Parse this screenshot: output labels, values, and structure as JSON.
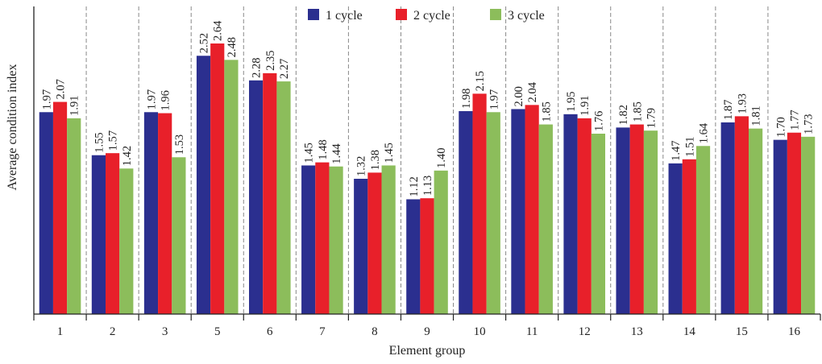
{
  "chart_data": {
    "type": "bar",
    "xlabel": "Element group",
    "ylabel": "Average condition index",
    "categories": [
      "1",
      "2",
      "3",
      "5",
      "6",
      "7",
      "8",
      "9",
      "10",
      "11",
      "12",
      "13",
      "14",
      "15",
      "16"
    ],
    "ylim": [
      0,
      2.75
    ],
    "grid": "vertical dashed separators between groups",
    "legend_position": "top-center",
    "series": [
      {
        "name": "1 cycle",
        "color": "#2b2f8f",
        "values": [
          1.97,
          1.55,
          1.97,
          2.52,
          2.28,
          1.45,
          1.32,
          1.12,
          1.98,
          2.0,
          1.95,
          1.82,
          1.47,
          1.87,
          1.7
        ]
      },
      {
        "name": "2 cycle",
        "color": "#e8202a",
        "values": [
          2.07,
          1.57,
          1.96,
          2.64,
          2.35,
          1.48,
          1.38,
          1.13,
          2.15,
          2.04,
          1.91,
          1.85,
          1.51,
          1.93,
          1.77
        ]
      },
      {
        "name": "3 cycle",
        "color": "#8cbd5b",
        "values": [
          1.91,
          1.42,
          1.53,
          2.48,
          2.27,
          1.44,
          1.45,
          1.4,
          1.97,
          1.85,
          1.76,
          1.79,
          1.64,
          1.81,
          1.73
        ]
      }
    ]
  }
}
